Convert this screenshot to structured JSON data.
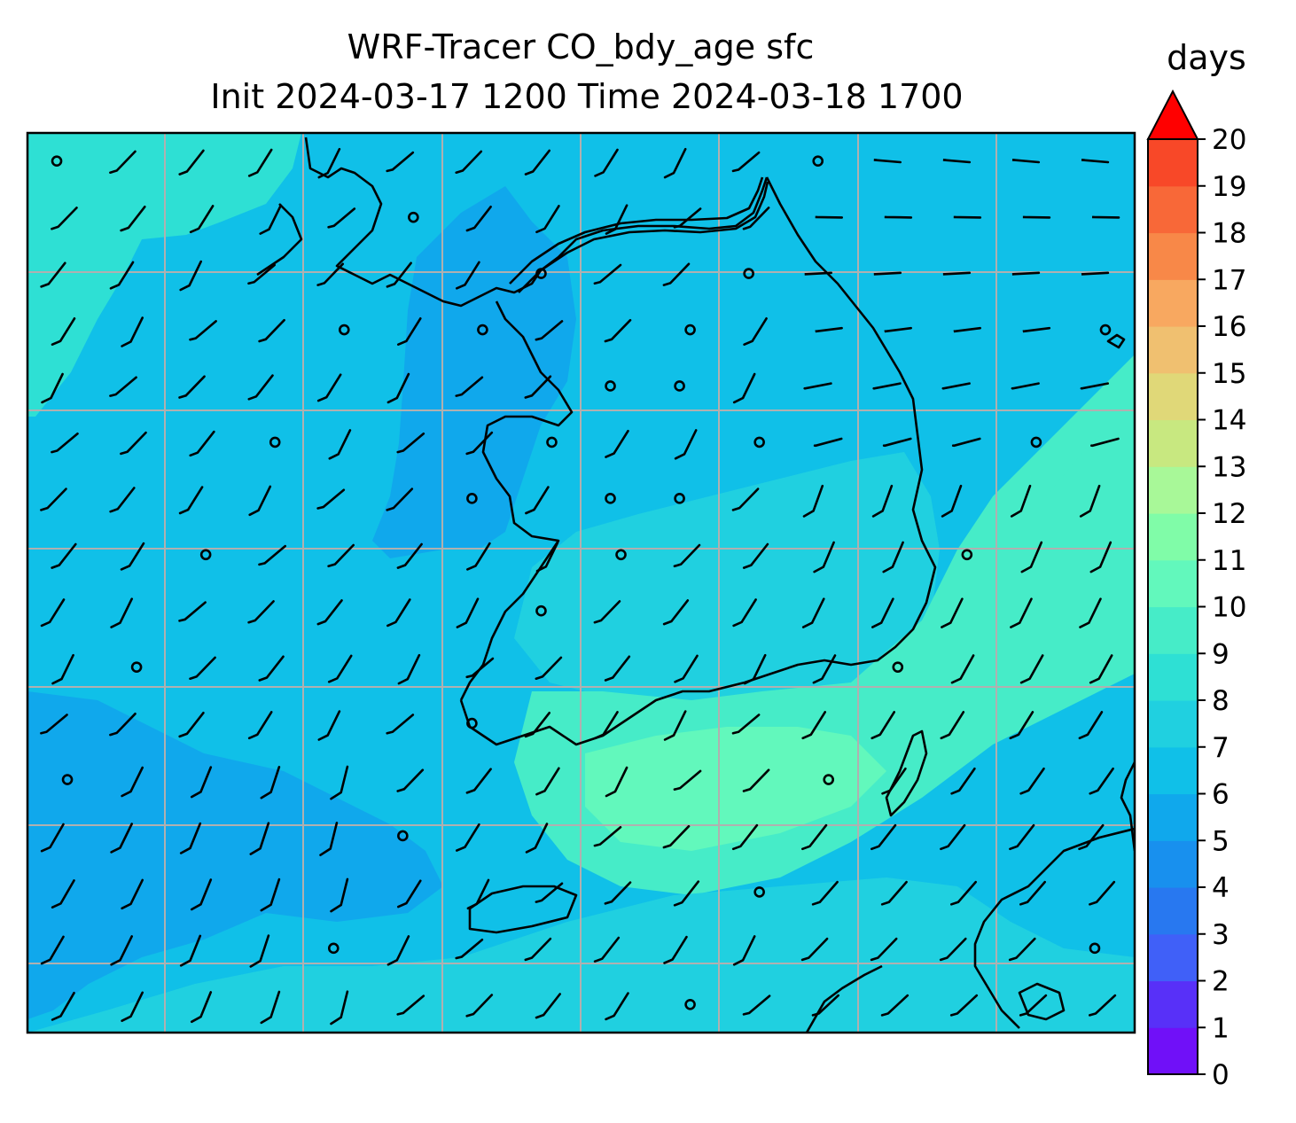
{
  "title": {
    "line1": "WRF-Tracer CO_bdy_age sfc",
    "line2": "Init 2024-03-17 1200 Time 2024-03-18 1700"
  },
  "colorbar": {
    "label": "days",
    "ticks": [
      "0",
      "1",
      "2",
      "3",
      "4",
      "5",
      "6",
      "7",
      "8",
      "9",
      "10",
      "11",
      "12",
      "13",
      "14",
      "15",
      "16",
      "17",
      "18",
      "19",
      "20"
    ],
    "colors": [
      "#7010f8",
      "#5830f8",
      "#4060f8",
      "#2878f0",
      "#1890ee",
      "#10a8ec",
      "#10c0e8",
      "#20d0e0",
      "#2ee0d4",
      "#46ecc8",
      "#62f8bc",
      "#80fca8",
      "#a8f898",
      "#c8e880",
      "#e0d878",
      "#f0c070",
      "#f8a860",
      "#f88848",
      "#f86838",
      "#f84828",
      "#f82010"
    ],
    "extend_color": "#ff0000"
  },
  "map": {
    "field": "CO_bdy_age",
    "units": "days",
    "contour_regions": [
      {
        "level": 7.5,
        "color": "#2ee0d4",
        "region": "northwest-seas"
      },
      {
        "level": 4.5,
        "color": "#10a8ec",
        "region": "yellow-sea-coast"
      },
      {
        "level": 4.5,
        "color": "#10a8ec",
        "region": "southwest-sea"
      },
      {
        "level": 6.5,
        "color": "#20d0e0",
        "region": "south-korea"
      },
      {
        "level": 8.5,
        "color": "#46ecc8",
        "region": "southern-coast"
      },
      {
        "level": 9.5,
        "color": "#62f8bc",
        "region": "southern-coast-core"
      },
      {
        "level": 8.5,
        "color": "#46ecc8",
        "region": "east-sea"
      },
      {
        "level": 6.5,
        "color": "#20d0e0",
        "region": "southern-belt"
      }
    ],
    "wind_barb_rows": 16,
    "wind_barb_cols": 16
  }
}
